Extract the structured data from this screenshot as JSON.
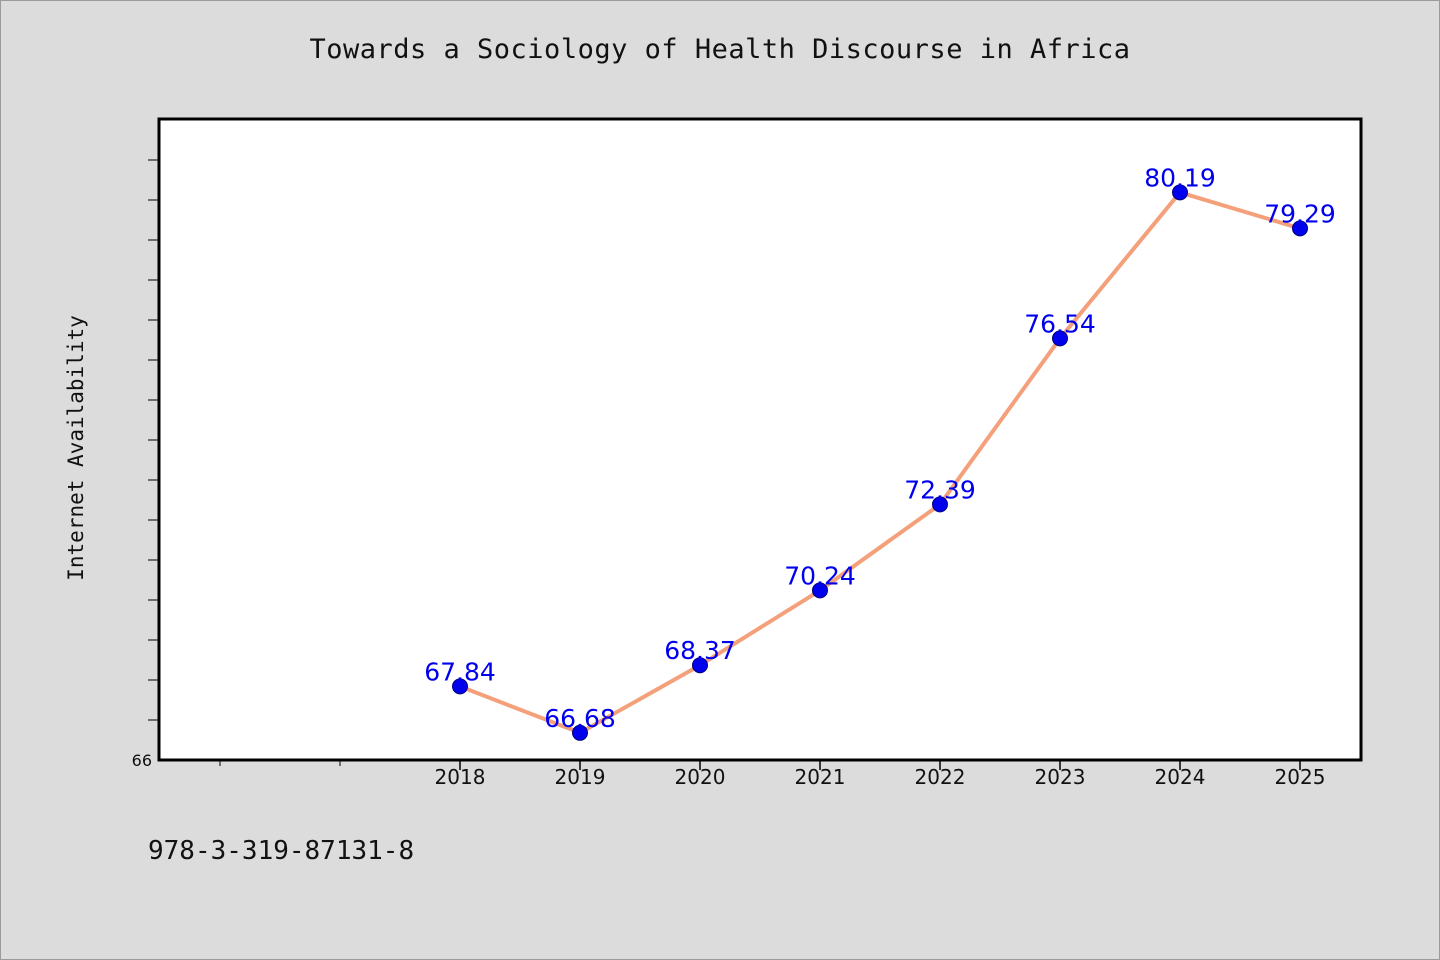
{
  "chart_data": {
    "type": "line",
    "title": "Towards a Sociology of Health Discourse in Africa",
    "xlabel": "",
    "ylabel": "Internet Availability",
    "categories": [
      "2018",
      "2019",
      "2020",
      "2021",
      "2022",
      "2023",
      "2024",
      "2025"
    ],
    "series": [
      {
        "values": [
          67.84,
          66.68,
          68.37,
          70.24,
          72.39,
          76.54,
          80.19,
          79.29
        ],
        "labels": [
          "67.84",
          "66.68",
          "68.37",
          "70.24",
          "72.39",
          "76.54",
          "80.19",
          "79.29"
        ],
        "line_color": "#f4a07a",
        "marker_color": "#0000ee",
        "label_color": "#0000ee"
      }
    ],
    "x_domain": [
      2015.5,
      2025.5
    ],
    "ylim": [
      66,
      82
    ],
    "y_min_label": "66",
    "grid": false,
    "legend": "none",
    "footnote": "978-3-319-87131-8"
  }
}
